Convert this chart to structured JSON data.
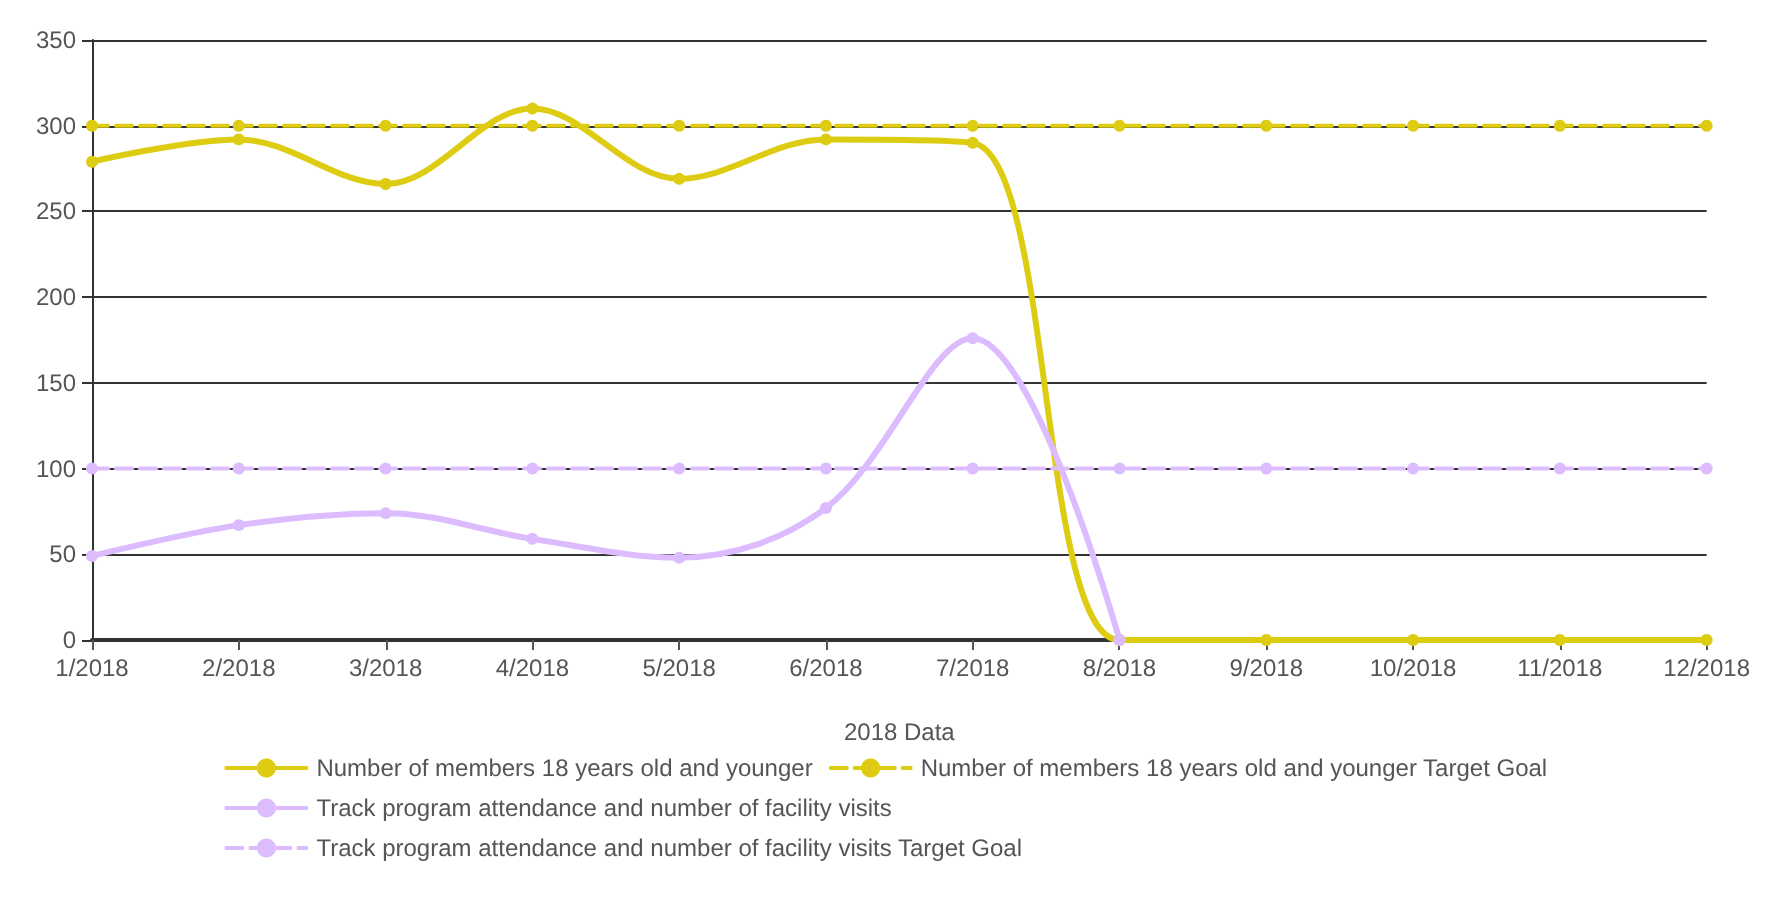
{
  "chart_data": {
    "type": "line",
    "xlabel": "2018 Data",
    "categories": [
      "1/2018",
      "2/2018",
      "3/2018",
      "4/2018",
      "5/2018",
      "6/2018",
      "7/2018",
      "8/2018",
      "9/2018",
      "10/2018",
      "11/2018",
      "12/2018"
    ],
    "series": [
      {
        "name": "Number of members 18 years old and younger",
        "color": "#ddcc11",
        "values": [
          279,
          292,
          266,
          310,
          269,
          292,
          290,
          0,
          0,
          0,
          0,
          0
        ]
      },
      {
        "name": "Number of members 18 years old and younger Target Goal",
        "color": "#ddcc11",
        "line_style": "dashed",
        "values": [
          300,
          300,
          300,
          300,
          300,
          300,
          300,
          300,
          300,
          300,
          300,
          300
        ]
      },
      {
        "name": "Track program attendance and number of facility visits",
        "color": "#ddbbff",
        "values": [
          49,
          67,
          74,
          59,
          48,
          77,
          176,
          0,
          null,
          null,
          null,
          null
        ]
      },
      {
        "name": "Track program attendance and number of facility visits Target Goal",
        "color": "#ddbbff",
        "line_style": "dashed",
        "values": [
          100,
          100,
          100,
          100,
          100,
          100,
          100,
          100,
          100,
          100,
          100,
          100
        ]
      }
    ],
    "ylim": [
      0,
      350
    ],
    "yticks": [
      0,
      50,
      100,
      150,
      200,
      250,
      300,
      350
    ],
    "grid": "y",
    "legend": "bottom",
    "marker": "circle",
    "line_style": "solid"
  }
}
